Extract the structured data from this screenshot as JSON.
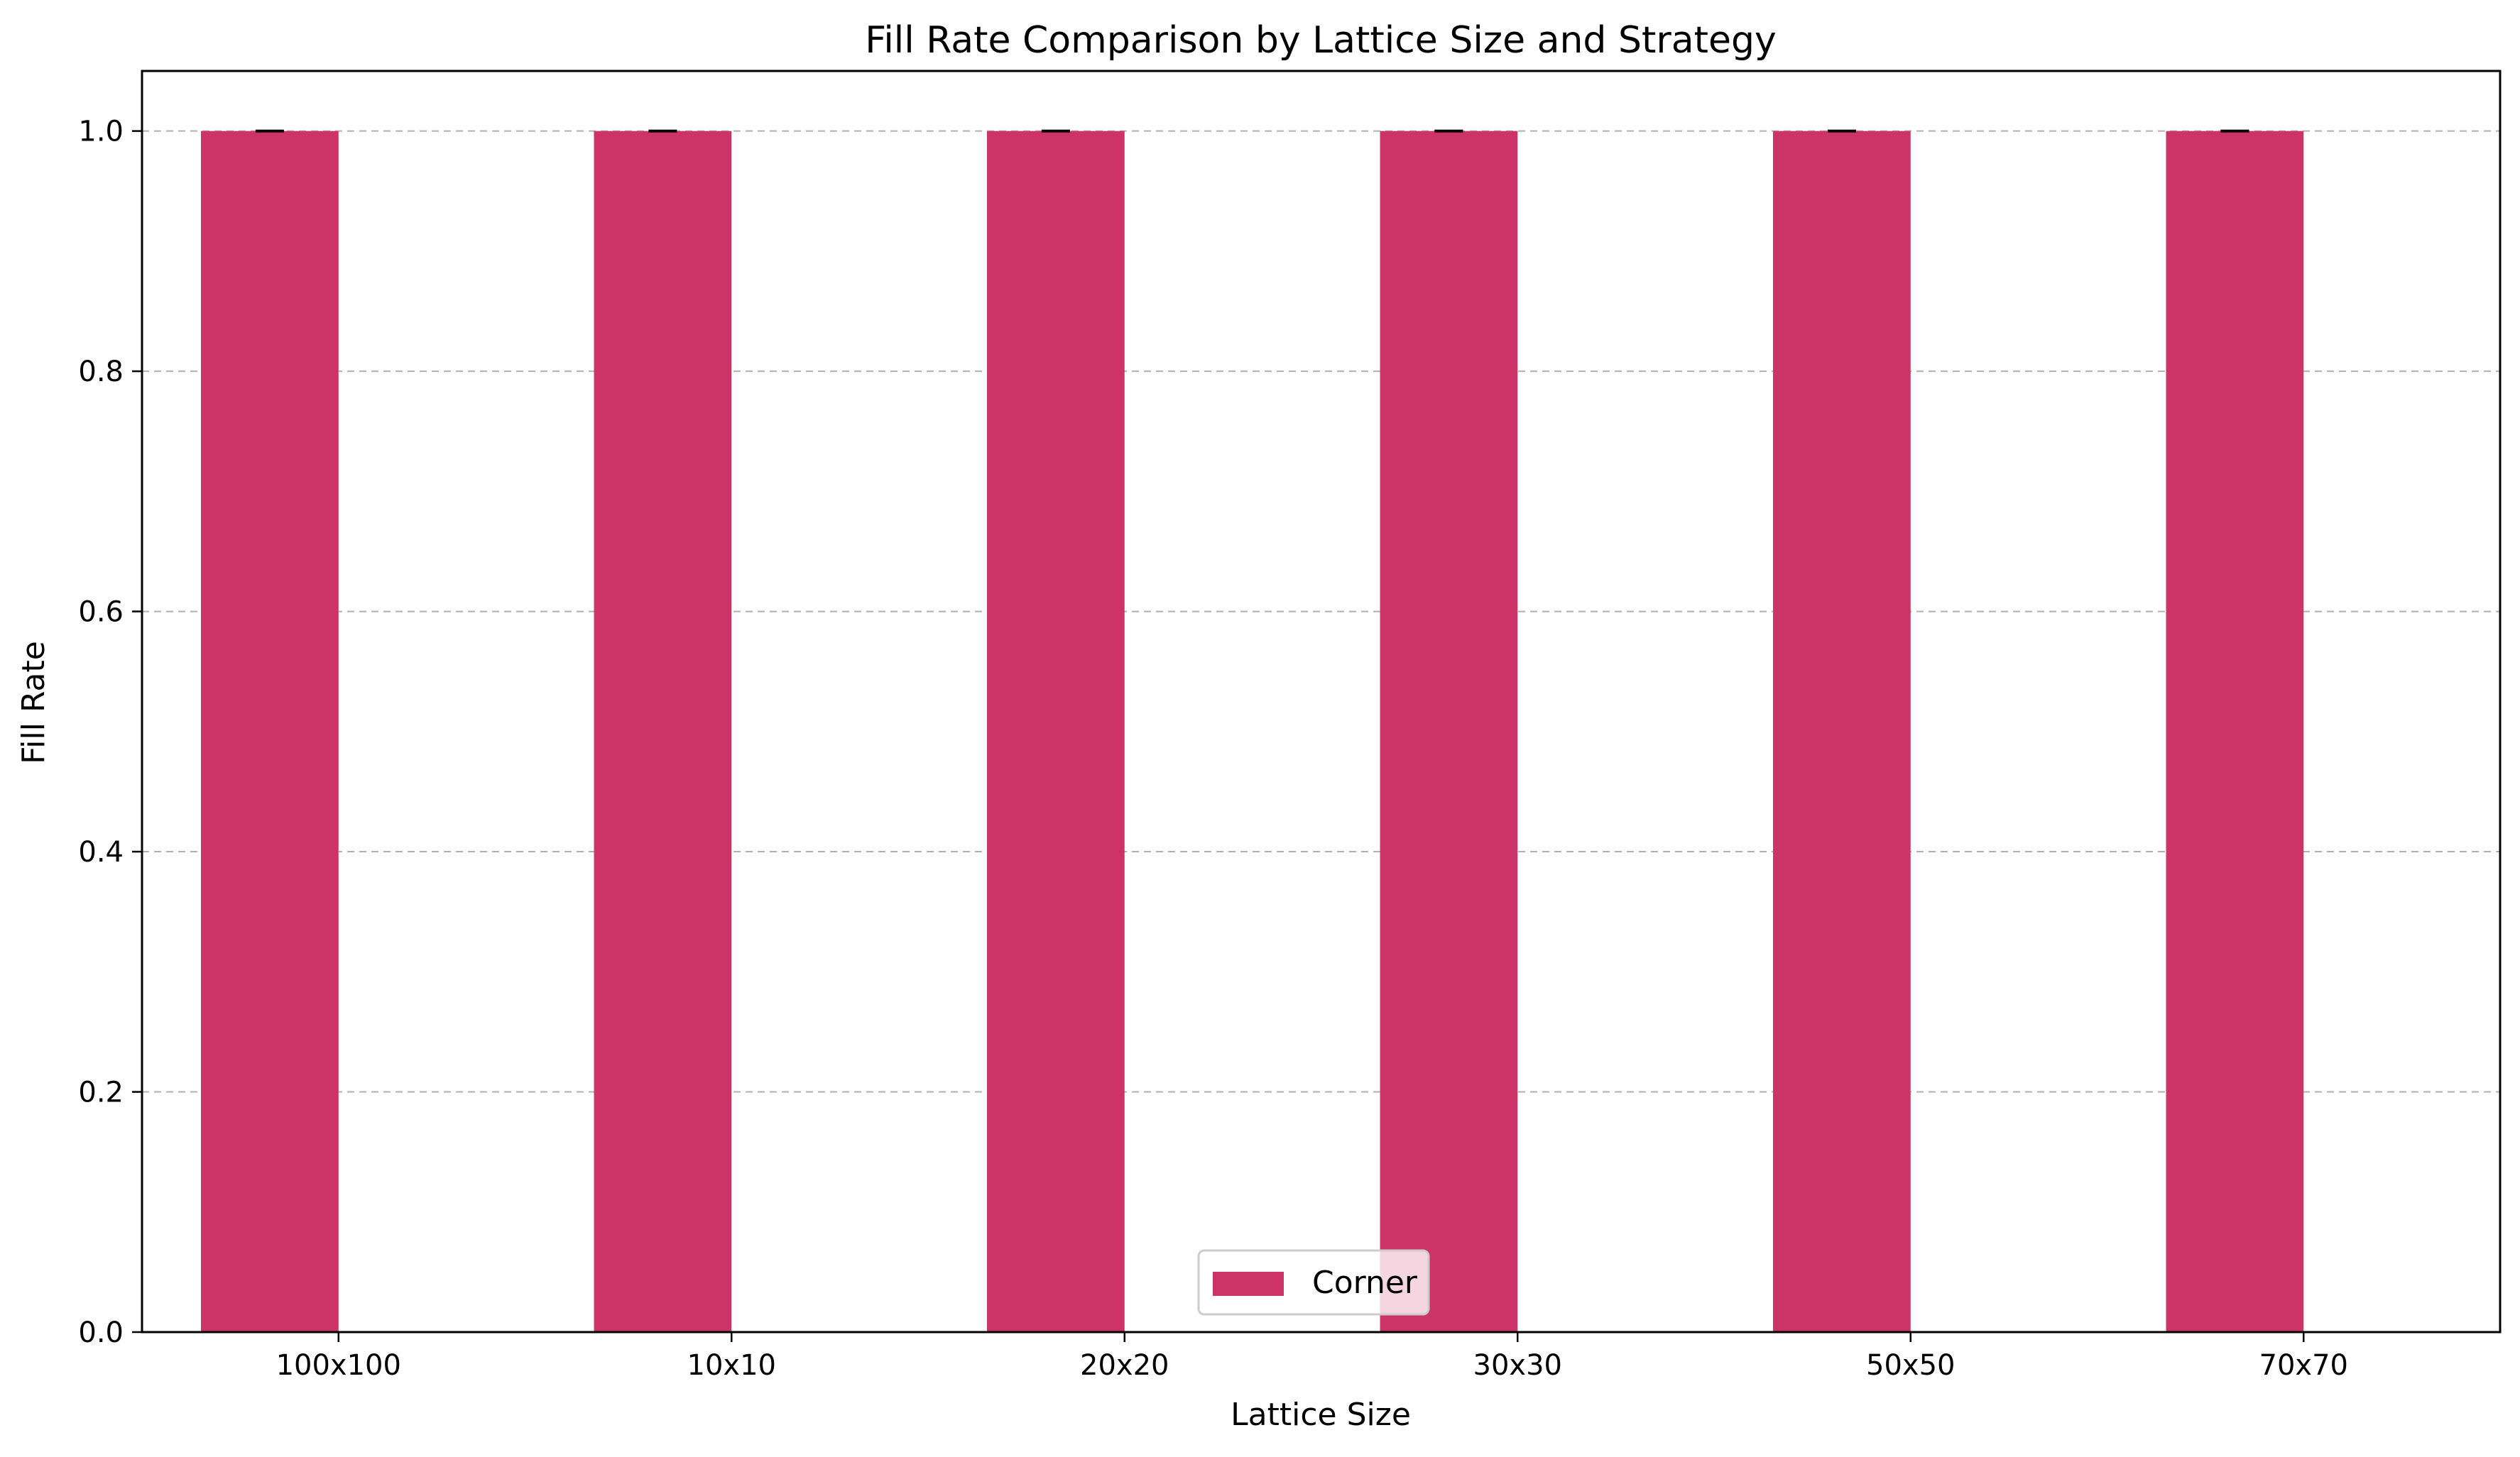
{
  "chart_data": {
    "type": "bar",
    "title": "Fill Rate Comparison by Lattice Size and Strategy",
    "xlabel": "Lattice Size",
    "ylabel": "Fill Rate",
    "categories": [
      "100x100",
      "10x10",
      "20x20",
      "30x30",
      "50x50",
      "70x70"
    ],
    "series": [
      {
        "name": "Corner",
        "values": [
          1.0,
          1.0,
          1.0,
          1.0,
          1.0,
          1.0
        ],
        "errors": [
          0.0,
          0.0,
          0.0,
          0.0,
          0.0,
          0.0
        ],
        "color": "#cc3366"
      }
    ],
    "ylim": [
      0,
      1.05
    ],
    "yticks": [
      "0.0",
      "0.2",
      "0.4",
      "0.6",
      "0.8",
      "1.0"
    ],
    "ytick_values": [
      0.0,
      0.2,
      0.4,
      0.6,
      0.8,
      1.0
    ],
    "grid": "y-dashed",
    "legend_position": "bottom-center"
  }
}
